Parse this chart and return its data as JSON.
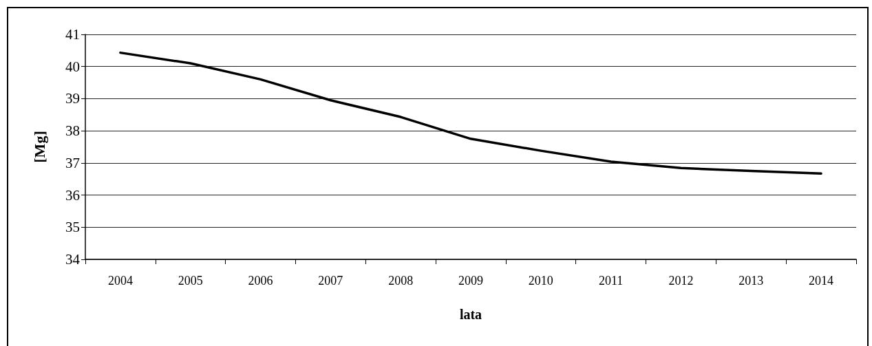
{
  "chart_data": {
    "type": "line",
    "xlabel": "lata",
    "ylabel": "[Mg]",
    "categories": [
      "2004",
      "2005",
      "2006",
      "2007",
      "2008",
      "2009",
      "2010",
      "2011",
      "2012",
      "2013",
      "2014"
    ],
    "series": [
      {
        "color": "#000000",
        "values": [
          40.43,
          40.1,
          39.6,
          38.95,
          38.43,
          37.75,
          37.38,
          37.04,
          36.84,
          36.75,
          36.67
        ]
      }
    ],
    "ylim": [
      34,
      41
    ],
    "yticks": [
      34,
      35,
      36,
      37,
      38,
      39,
      40,
      41
    ],
    "grid": "y",
    "marker": "none",
    "line_style": "solid"
  }
}
